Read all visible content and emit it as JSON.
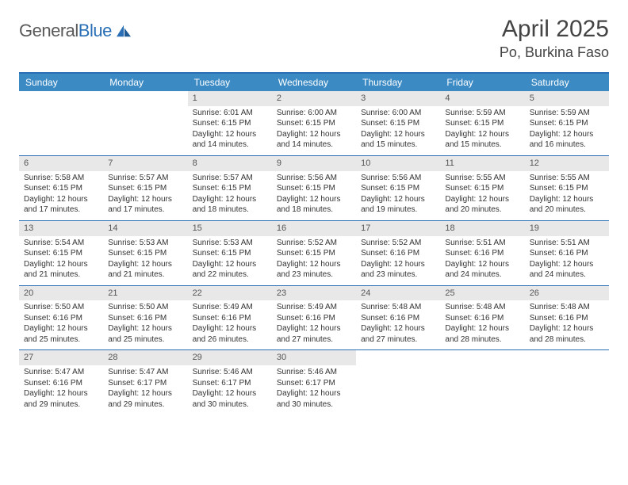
{
  "logo": {
    "text_general": "General",
    "text_blue": "Blue"
  },
  "header": {
    "month_year": "April 2025",
    "location": "Po, Burkina Faso"
  },
  "colors": {
    "header_bar": "#3b8ac4",
    "border": "#2a6fb5",
    "day_number_bg": "#e8e8e8",
    "text": "#333333"
  },
  "weekdays": [
    "Sunday",
    "Monday",
    "Tuesday",
    "Wednesday",
    "Thursday",
    "Friday",
    "Saturday"
  ],
  "weeks": [
    [
      {
        "empty": true
      },
      {
        "empty": true
      },
      {
        "n": "1",
        "sunrise": "6:01 AM",
        "sunset": "6:15 PM",
        "daylight": "12 hours and 14 minutes."
      },
      {
        "n": "2",
        "sunrise": "6:00 AM",
        "sunset": "6:15 PM",
        "daylight": "12 hours and 14 minutes."
      },
      {
        "n": "3",
        "sunrise": "6:00 AM",
        "sunset": "6:15 PM",
        "daylight": "12 hours and 15 minutes."
      },
      {
        "n": "4",
        "sunrise": "5:59 AM",
        "sunset": "6:15 PM",
        "daylight": "12 hours and 15 minutes."
      },
      {
        "n": "5",
        "sunrise": "5:59 AM",
        "sunset": "6:15 PM",
        "daylight": "12 hours and 16 minutes."
      }
    ],
    [
      {
        "n": "6",
        "sunrise": "5:58 AM",
        "sunset": "6:15 PM",
        "daylight": "12 hours and 17 minutes."
      },
      {
        "n": "7",
        "sunrise": "5:57 AM",
        "sunset": "6:15 PM",
        "daylight": "12 hours and 17 minutes."
      },
      {
        "n": "8",
        "sunrise": "5:57 AM",
        "sunset": "6:15 PM",
        "daylight": "12 hours and 18 minutes."
      },
      {
        "n": "9",
        "sunrise": "5:56 AM",
        "sunset": "6:15 PM",
        "daylight": "12 hours and 18 minutes."
      },
      {
        "n": "10",
        "sunrise": "5:56 AM",
        "sunset": "6:15 PM",
        "daylight": "12 hours and 19 minutes."
      },
      {
        "n": "11",
        "sunrise": "5:55 AM",
        "sunset": "6:15 PM",
        "daylight": "12 hours and 20 minutes."
      },
      {
        "n": "12",
        "sunrise": "5:55 AM",
        "sunset": "6:15 PM",
        "daylight": "12 hours and 20 minutes."
      }
    ],
    [
      {
        "n": "13",
        "sunrise": "5:54 AM",
        "sunset": "6:15 PM",
        "daylight": "12 hours and 21 minutes."
      },
      {
        "n": "14",
        "sunrise": "5:53 AM",
        "sunset": "6:15 PM",
        "daylight": "12 hours and 21 minutes."
      },
      {
        "n": "15",
        "sunrise": "5:53 AM",
        "sunset": "6:15 PM",
        "daylight": "12 hours and 22 minutes."
      },
      {
        "n": "16",
        "sunrise": "5:52 AM",
        "sunset": "6:15 PM",
        "daylight": "12 hours and 23 minutes."
      },
      {
        "n": "17",
        "sunrise": "5:52 AM",
        "sunset": "6:16 PM",
        "daylight": "12 hours and 23 minutes."
      },
      {
        "n": "18",
        "sunrise": "5:51 AM",
        "sunset": "6:16 PM",
        "daylight": "12 hours and 24 minutes."
      },
      {
        "n": "19",
        "sunrise": "5:51 AM",
        "sunset": "6:16 PM",
        "daylight": "12 hours and 24 minutes."
      }
    ],
    [
      {
        "n": "20",
        "sunrise": "5:50 AM",
        "sunset": "6:16 PM",
        "daylight": "12 hours and 25 minutes."
      },
      {
        "n": "21",
        "sunrise": "5:50 AM",
        "sunset": "6:16 PM",
        "daylight": "12 hours and 25 minutes."
      },
      {
        "n": "22",
        "sunrise": "5:49 AM",
        "sunset": "6:16 PM",
        "daylight": "12 hours and 26 minutes."
      },
      {
        "n": "23",
        "sunrise": "5:49 AM",
        "sunset": "6:16 PM",
        "daylight": "12 hours and 27 minutes."
      },
      {
        "n": "24",
        "sunrise": "5:48 AM",
        "sunset": "6:16 PM",
        "daylight": "12 hours and 27 minutes."
      },
      {
        "n": "25",
        "sunrise": "5:48 AM",
        "sunset": "6:16 PM",
        "daylight": "12 hours and 28 minutes."
      },
      {
        "n": "26",
        "sunrise": "5:48 AM",
        "sunset": "6:16 PM",
        "daylight": "12 hours and 28 minutes."
      }
    ],
    [
      {
        "n": "27",
        "sunrise": "5:47 AM",
        "sunset": "6:16 PM",
        "daylight": "12 hours and 29 minutes."
      },
      {
        "n": "28",
        "sunrise": "5:47 AM",
        "sunset": "6:17 PM",
        "daylight": "12 hours and 29 minutes."
      },
      {
        "n": "29",
        "sunrise": "5:46 AM",
        "sunset": "6:17 PM",
        "daylight": "12 hours and 30 minutes."
      },
      {
        "n": "30",
        "sunrise": "5:46 AM",
        "sunset": "6:17 PM",
        "daylight": "12 hours and 30 minutes."
      },
      {
        "empty": true
      },
      {
        "empty": true
      },
      {
        "empty": true
      }
    ]
  ],
  "labels": {
    "sunrise_prefix": "Sunrise: ",
    "sunset_prefix": "Sunset: ",
    "daylight_prefix": "Daylight: "
  }
}
